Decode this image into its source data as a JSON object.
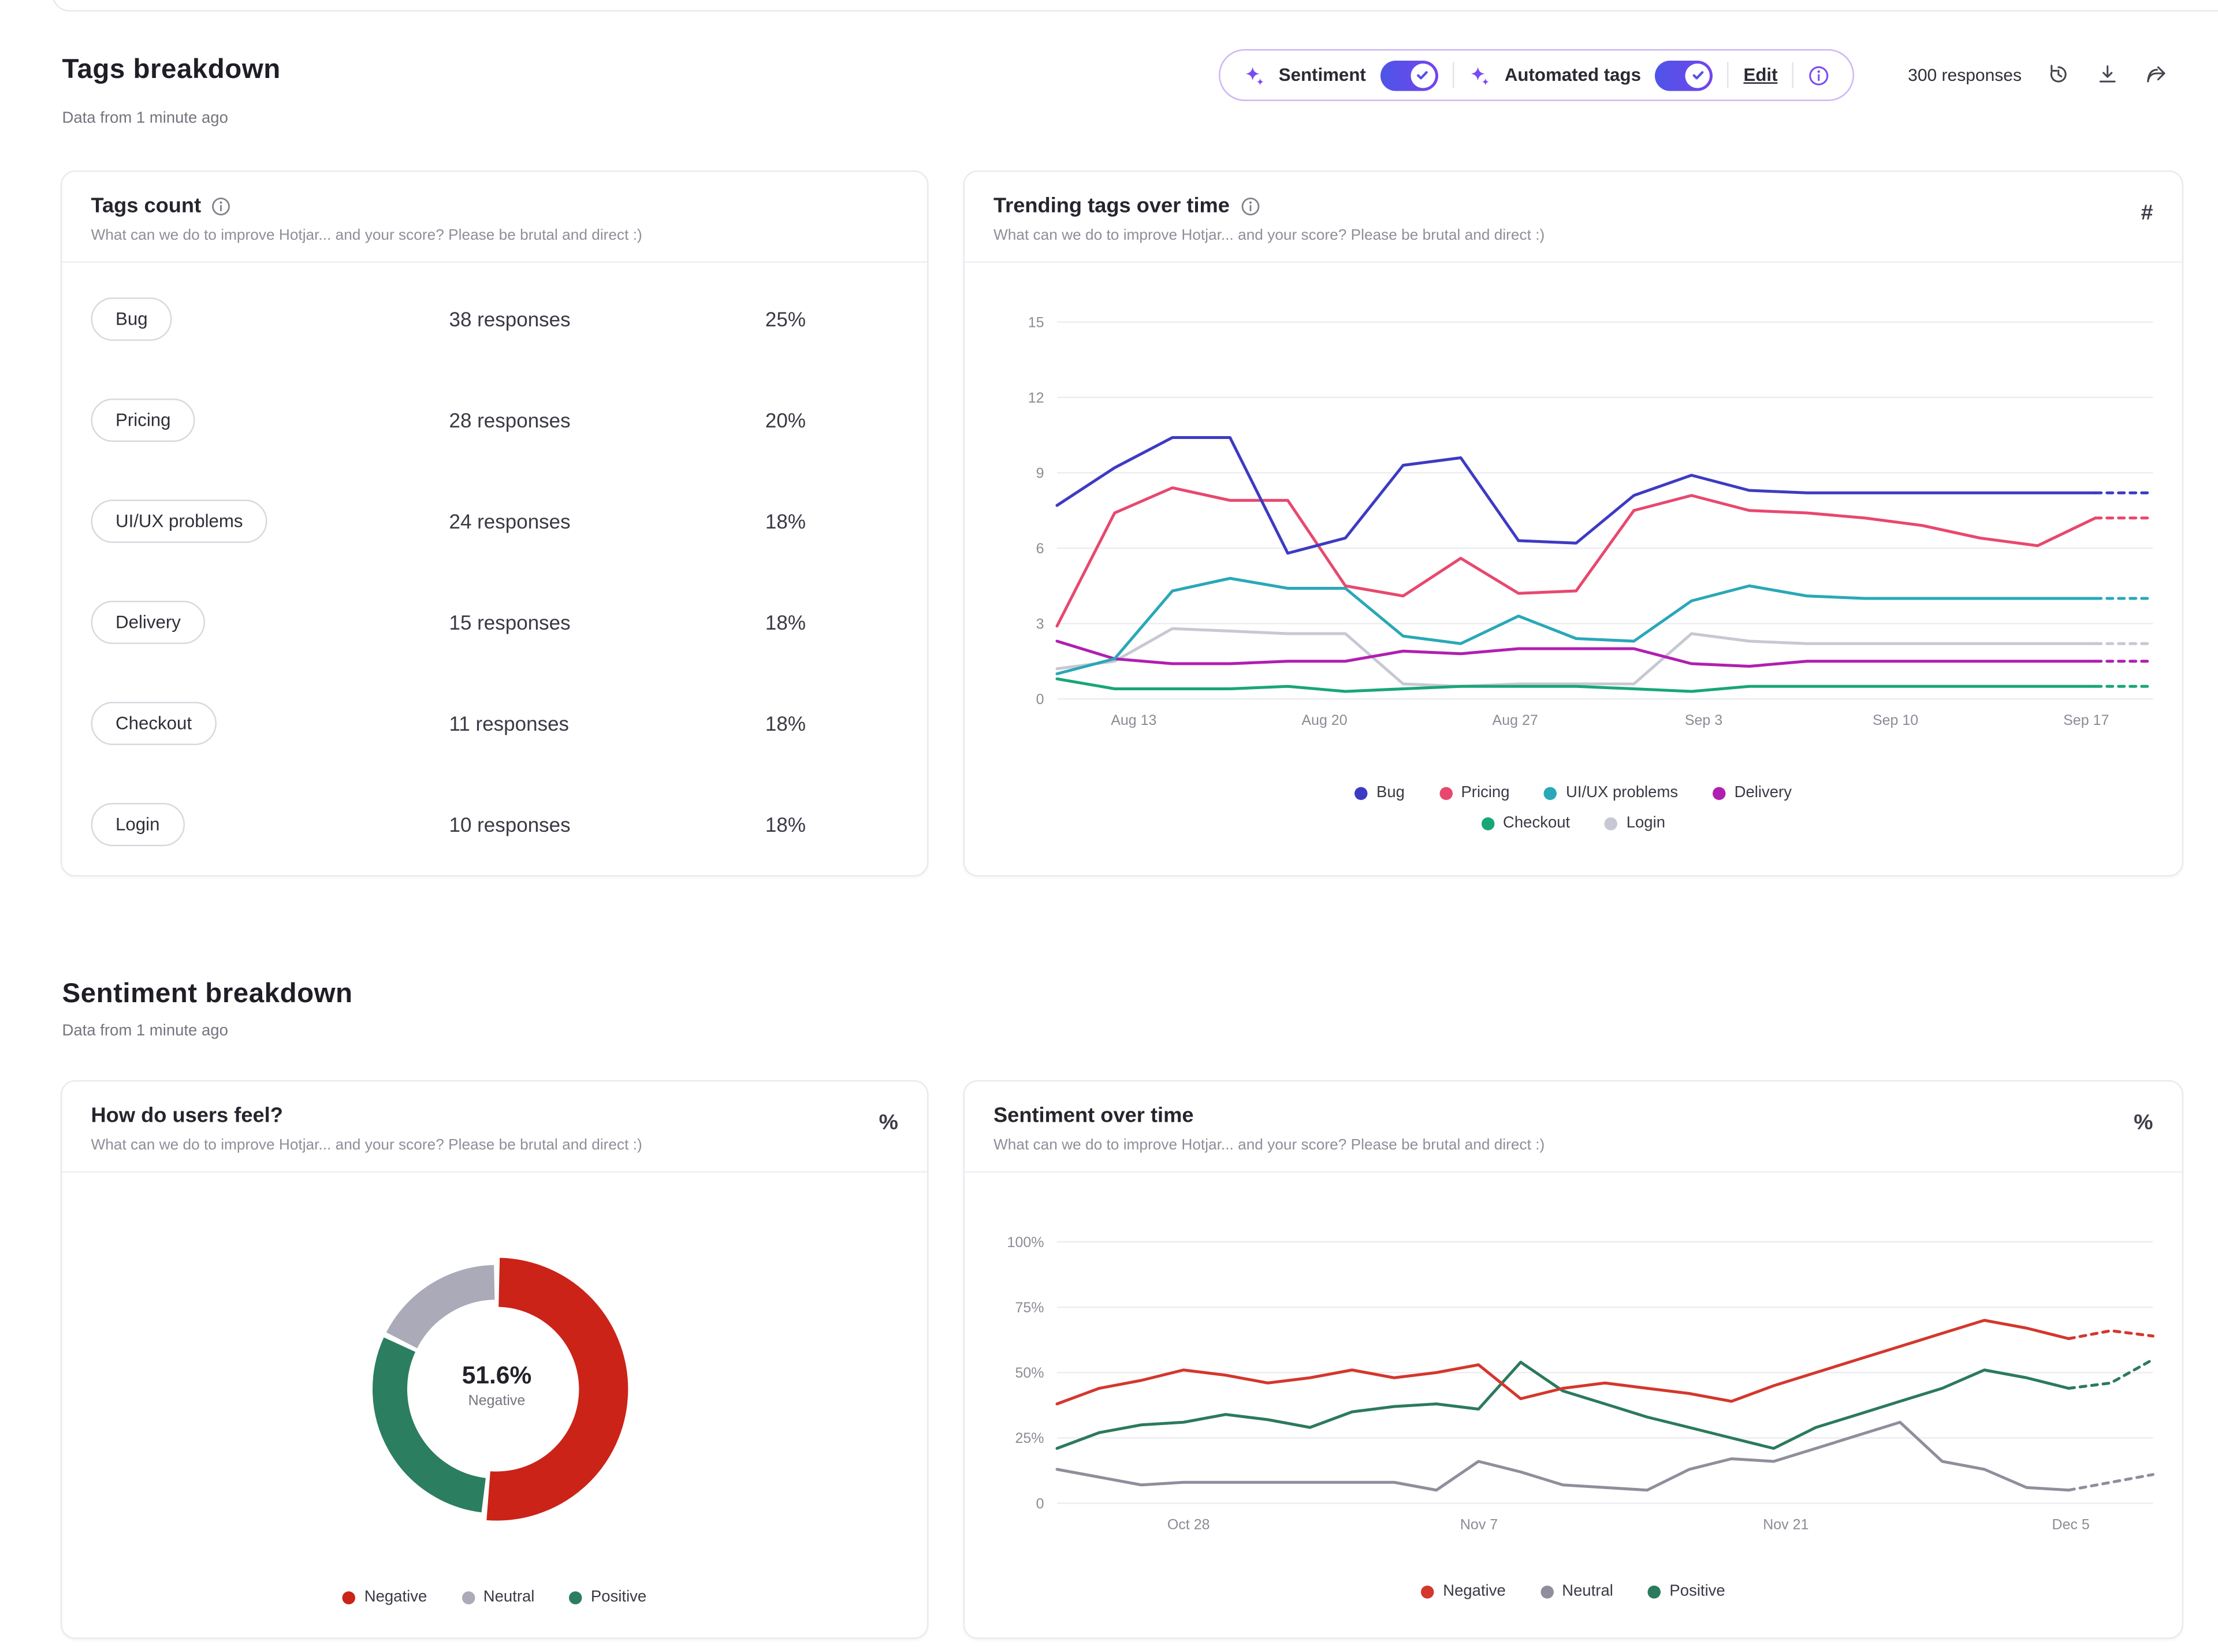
{
  "page": {
    "tags_breakdown_title": "Tags breakdown",
    "tags_breakdown_updated": "Data from 1 minute ago",
    "sentiment_breakdown_title": "Sentiment breakdown",
    "sentiment_breakdown_updated": "Data from 1 minute ago"
  },
  "toolbar": {
    "sentiment_label": "Sentiment",
    "automated_tags_label": "Automated tags",
    "edit_label": "Edit",
    "responses_label": "300 responses",
    "accent_color": "#7a4af2",
    "toggle_color": "#4d55e6"
  },
  "tags_count_card": {
    "title": "Tags count",
    "subtitle": "What can we do to improve Hotjar... and your score? Please be brutal and direct :)",
    "rows": [
      {
        "tag": "Bug",
        "responses": "38 responses",
        "pct": "25%"
      },
      {
        "tag": "Pricing",
        "responses": "28 responses",
        "pct": "20%"
      },
      {
        "tag": "UI/UX problems",
        "responses": "24 responses",
        "pct": "18%"
      },
      {
        "tag": "Delivery",
        "responses": "15 responses",
        "pct": "18%"
      },
      {
        "tag": "Checkout",
        "responses": "11 responses",
        "pct": "18%"
      },
      {
        "tag": "Login",
        "responses": "10 responses",
        "pct": "18%"
      }
    ]
  },
  "trending_card": {
    "title": "Trending tags over time",
    "subtitle": "What can we do to improve Hotjar... and your score? Please be brutal and direct :)",
    "unit": "#"
  },
  "feel_card": {
    "title": "How do users feel?",
    "subtitle": "What can we do to improve Hotjar... and your score? Please be brutal and direct :)",
    "unit": "%"
  },
  "sentiment_time_card": {
    "title": "Sentiment over time",
    "subtitle": "What can we do to improve Hotjar... and your score? Please be brutal and direct :)",
    "unit": "%"
  },
  "chart_data": [
    {
      "id": "trending-tags",
      "type": "line",
      "title": "Trending tags over time",
      "ylim": [
        0,
        15
      ],
      "grid": true,
      "dash_segments": 1,
      "yticks": [
        {
          "v": 0,
          "label": "0"
        },
        {
          "v": 3,
          "label": "3"
        },
        {
          "v": 6,
          "label": "6"
        },
        {
          "v": 9,
          "label": "9"
        },
        {
          "v": 12,
          "label": "12"
        },
        {
          "v": 15,
          "label": "15"
        }
      ],
      "xticks": [
        {
          "pos": 0.07,
          "label": "Aug 13"
        },
        {
          "pos": 0.244,
          "label": "Aug 20"
        },
        {
          "pos": 0.418,
          "label": "Aug 27"
        },
        {
          "pos": 0.59,
          "label": "Sep 3"
        },
        {
          "pos": 0.765,
          "label": "Sep 10"
        },
        {
          "pos": 0.939,
          "label": "Sep 17"
        }
      ],
      "series": [
        {
          "name": "Bug",
          "color": "#3d3bc3",
          "values": [
            7.7,
            9.2,
            10.4,
            10.4,
            5.8,
            6.4,
            9.3,
            9.6,
            6.3,
            6.2,
            8.1,
            8.9,
            8.3,
            8.2,
            8.2,
            8.2,
            8.2,
            8.2,
            8.2,
            8.2
          ]
        },
        {
          "name": "Pricing",
          "color": "#e8486e",
          "values": [
            2.9,
            7.4,
            8.4,
            7.9,
            7.9,
            4.5,
            4.1,
            5.6,
            4.2,
            4.3,
            7.5,
            8.1,
            7.5,
            7.4,
            7.2,
            6.9,
            6.4,
            6.1,
            7.2,
            7.2
          ]
        },
        {
          "name": "UI/UX problems",
          "color": "#29a8b8",
          "values": [
            1.0,
            1.6,
            4.3,
            4.8,
            4.4,
            4.4,
            2.5,
            2.2,
            3.3,
            2.4,
            2.3,
            3.9,
            4.5,
            4.1,
            4.0,
            4.0,
            4.0,
            4.0,
            4.0,
            4.0
          ]
        },
        {
          "name": "Delivery",
          "color": "#b01fb0",
          "values": [
            2.3,
            1.6,
            1.4,
            1.4,
            1.5,
            1.5,
            1.9,
            1.8,
            2.0,
            2.0,
            2.0,
            1.4,
            1.3,
            1.5,
            1.5,
            1.5,
            1.5,
            1.5,
            1.5,
            1.5
          ]
        },
        {
          "name": "Checkout",
          "color": "#18a679",
          "values": [
            0.8,
            0.4,
            0.4,
            0.4,
            0.5,
            0.3,
            0.4,
            0.5,
            0.5,
            0.5,
            0.4,
            0.3,
            0.5,
            0.5,
            0.5,
            0.5,
            0.5,
            0.5,
            0.5,
            0.5
          ]
        },
        {
          "name": "Login",
          "color": "#c8c8d4",
          "values": [
            1.2,
            1.5,
            2.8,
            2.7,
            2.6,
            2.6,
            0.6,
            0.5,
            0.6,
            0.6,
            0.6,
            2.6,
            2.3,
            2.2,
            2.2,
            2.2,
            2.2,
            2.2,
            2.2,
            2.2
          ]
        }
      ]
    },
    {
      "id": "sentiment-donut",
      "type": "pie",
      "center_value": "51.6%",
      "center_label": "Negative",
      "segments": [
        {
          "label": "Negative",
          "pct": 51.6,
          "color": "#cb2318",
          "emphasis": true
        },
        {
          "label": "Positive",
          "pct": 30.6,
          "color": "#2b7e5f",
          "emphasis": false
        },
        {
          "label": "Neutral",
          "pct": 17.8,
          "color": "#abaab8",
          "emphasis": false
        }
      ],
      "legend": [
        {
          "label": "Negative",
          "color": "#cb2318"
        },
        {
          "label": "Neutral",
          "color": "#abaab8"
        },
        {
          "label": "Positive",
          "color": "#2b7e5f"
        }
      ]
    },
    {
      "id": "sentiment-over-time",
      "type": "line",
      "title": "Sentiment over time",
      "ylim": [
        0,
        100
      ],
      "grid": true,
      "dash_segments": 2,
      "yticks": [
        {
          "v": 0,
          "label": "0"
        },
        {
          "v": 25,
          "label": "25%"
        },
        {
          "v": 50,
          "label": "50%"
        },
        {
          "v": 75,
          "label": "75%"
        },
        {
          "v": 100,
          "label": "100%"
        }
      ],
      "xticks": [
        {
          "pos": 0.12,
          "label": "Oct 28"
        },
        {
          "pos": 0.385,
          "label": "Nov 7"
        },
        {
          "pos": 0.665,
          "label": "Nov 21"
        },
        {
          "pos": 0.925,
          "label": "Dec 5"
        }
      ],
      "series": [
        {
          "name": "Negative",
          "color": "#d3372d",
          "values": [
            38,
            44,
            47,
            51,
            49,
            46,
            48,
            51,
            48,
            50,
            53,
            40,
            44,
            46,
            44,
            42,
            39,
            45,
            50,
            55,
            60,
            65,
            70,
            67,
            63,
            66,
            64
          ]
        },
        {
          "name": "Neutral",
          "color": "#8f8e9c",
          "values": [
            13,
            10,
            7,
            8,
            8,
            8,
            8,
            8,
            8,
            5,
            16,
            12,
            7,
            6,
            5,
            13,
            17,
            16,
            21,
            26,
            31,
            16,
            13,
            6,
            5,
            8,
            11
          ]
        },
        {
          "name": "Positive",
          "color": "#2b7a5b",
          "values": [
            21,
            27,
            30,
            31,
            34,
            32,
            29,
            35,
            37,
            38,
            36,
            54,
            43,
            38,
            33,
            29,
            25,
            21,
            29,
            34,
            39,
            44,
            51,
            48,
            44,
            46,
            55
          ]
        }
      ]
    }
  ]
}
